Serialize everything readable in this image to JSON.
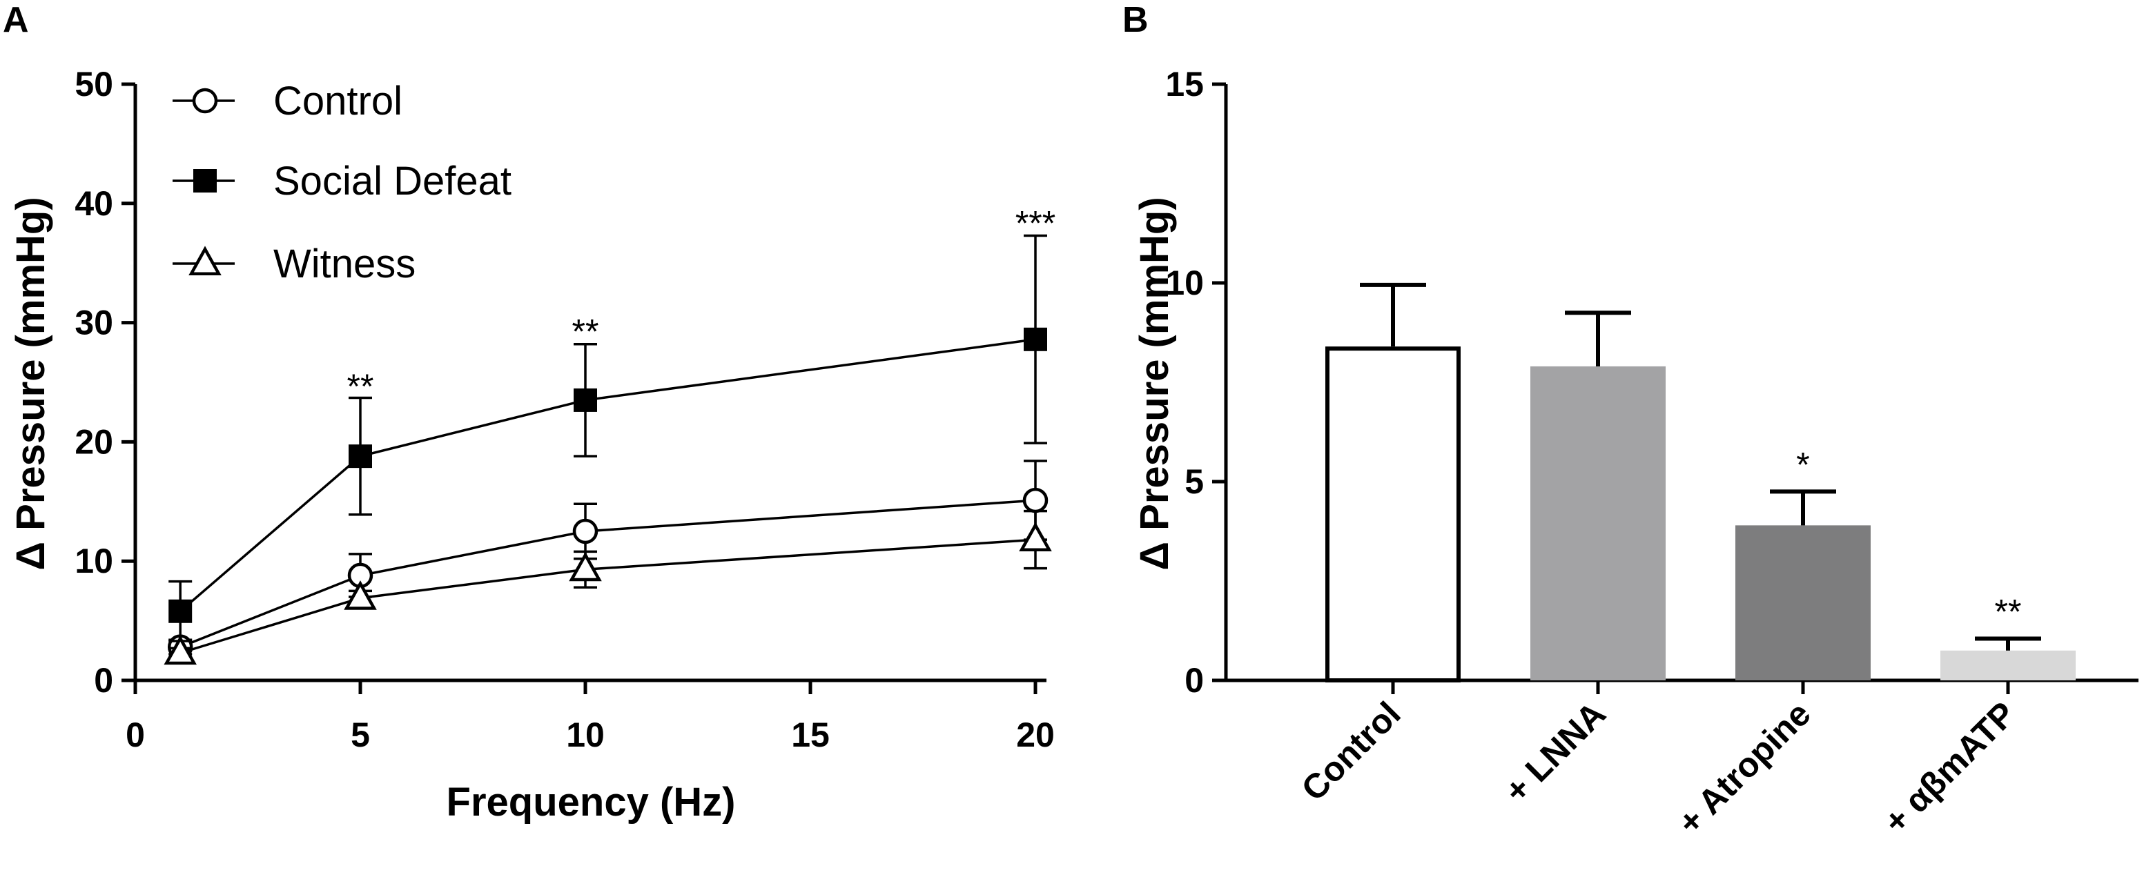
{
  "panels": [
    {
      "label": "A"
    },
    {
      "label": "B"
    }
  ],
  "chart_data": [
    {
      "type": "line",
      "xlabel": "Frequency (Hz)",
      "ylabel": "Δ Pressure (mmHg)",
      "xlim": [
        0,
        20
      ],
      "ylim": [
        0,
        50
      ],
      "xticks": [
        0,
        5,
        10,
        15,
        20
      ],
      "yticks": [
        0,
        10,
        20,
        30,
        40,
        50
      ],
      "grid": false,
      "legend_position": "top-left",
      "series": [
        {
          "name": "Control",
          "marker": "circle-open",
          "x": [
            1,
            5,
            10,
            20
          ],
          "y": [
            2.8,
            8.8,
            12.5,
            15.1
          ],
          "error": [
            0.6,
            1.8,
            2.3,
            3.3
          ]
        },
        {
          "name": "Social Defeat",
          "marker": "square-filled",
          "x": [
            1,
            5,
            10,
            20
          ],
          "y": [
            5.8,
            18.8,
            23.5,
            28.6
          ],
          "error": [
            2.5,
            4.9,
            4.7,
            8.7
          ]
        },
        {
          "name": "Witness",
          "marker": "triangle-open",
          "x": [
            1,
            5,
            10,
            20
          ],
          "y": [
            2.3,
            6.9,
            9.3,
            11.8
          ],
          "error": [
            0.4,
            0.6,
            1.5,
            2.4
          ]
        }
      ],
      "annotations": [
        {
          "text": "**",
          "x": 5,
          "y": 24.7
        },
        {
          "text": "**",
          "x": 10,
          "y": 29.3
        },
        {
          "text": "***",
          "x": 20,
          "y": 38.4
        }
      ]
    },
    {
      "type": "bar",
      "ylabel": "Δ Pressure (mmHg)",
      "ylim": [
        0,
        15
      ],
      "yticks": [
        0,
        5,
        10,
        15
      ],
      "grid": false,
      "categories": [
        "Control",
        "+ LNNA",
        "+ Atropine",
        "+ αβmATP"
      ],
      "values": [
        8.4,
        7.9,
        3.9,
        0.75
      ],
      "errors": [
        1.55,
        1.35,
        0.85,
        0.3
      ],
      "bar_colors": [
        "#ffffff",
        "#a3a3a5",
        "#7d7d7e",
        "#d8d8d8"
      ],
      "annotations": [
        {
          "text": "",
          "category": 0
        },
        {
          "text": "",
          "category": 1
        },
        {
          "text": "*",
          "category": 2
        },
        {
          "text": "**",
          "category": 3
        }
      ]
    }
  ]
}
